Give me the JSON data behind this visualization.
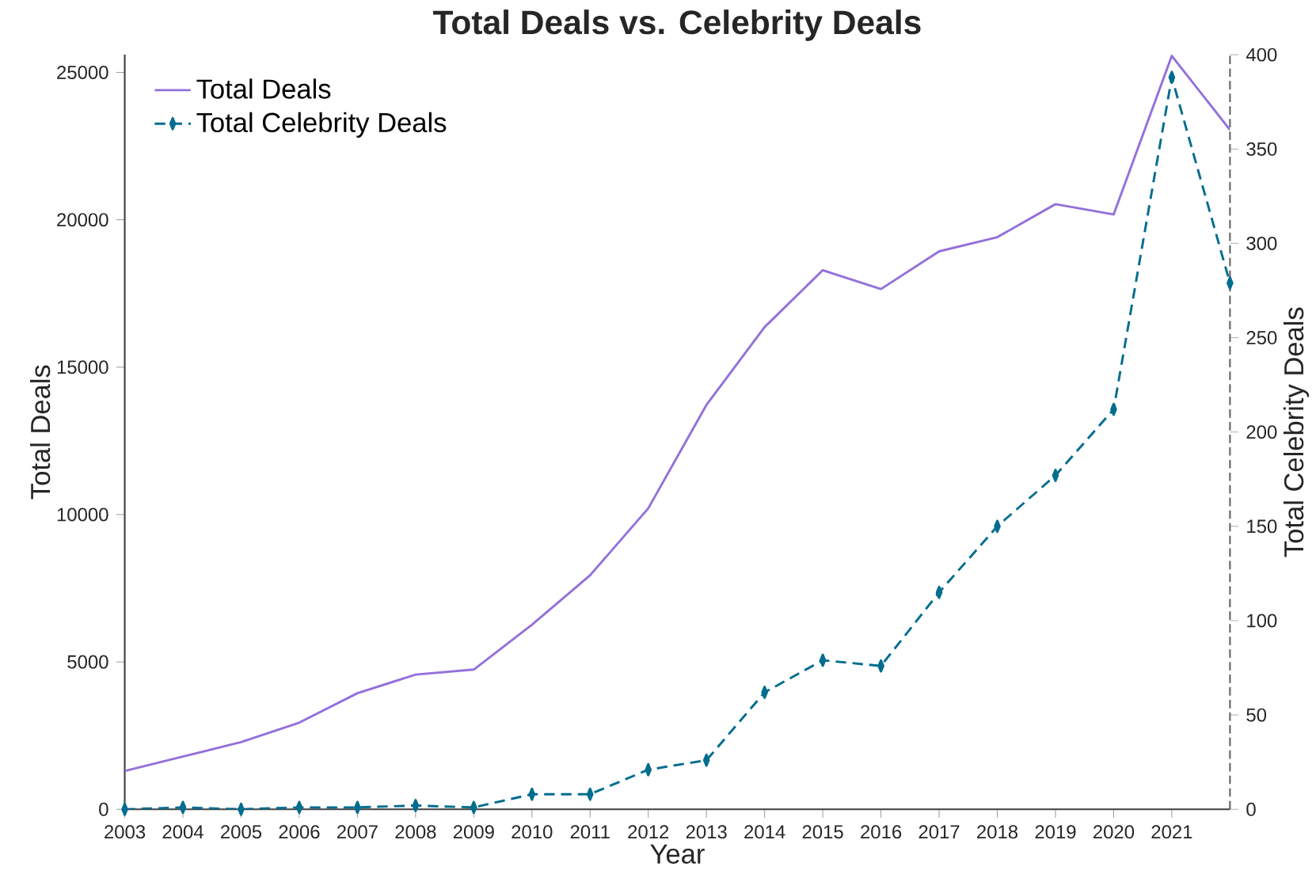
{
  "chart_data": {
    "type": "line",
    "title": "Total Deals vs. Celebrity Deals",
    "xlabel": "Year",
    "ylabel": "Total Deals",
    "y2label": "Total Celebrity Deals",
    "x": [
      2003,
      2004,
      2005,
      2006,
      2007,
      2008,
      2009,
      2010,
      2011,
      2012,
      2013,
      2014,
      2015,
      2016,
      2017,
      2018,
      2019,
      2020,
      2021,
      2022
    ],
    "series": [
      {
        "name": "Total Deals",
        "color": "#9370db",
        "line_style": "solid",
        "marker": "none",
        "values": [
          1300,
          1790,
          2280,
          2940,
          3940,
          4570,
          4740,
          6260,
          7940,
          10210,
          13720,
          16360,
          18290,
          17650,
          18930,
          19410,
          20530,
          20180,
          25560,
          23050
        ]
      },
      {
        "name": "Total Celebrity Deals",
        "color": "#006d8f",
        "line_style": "dashed",
        "marker": "diamond",
        "axis": "y2",
        "values": [
          0,
          1,
          0,
          1,
          1,
          2,
          1,
          8,
          8,
          21,
          26,
          62,
          79,
          76,
          115,
          150,
          177,
          212,
          388,
          279
        ]
      }
    ],
    "xlim": [
      2003,
      2022
    ],
    "xticks": [
      2003,
      2004,
      2005,
      2006,
      2007,
      2008,
      2009,
      2010,
      2011,
      2012,
      2013,
      2014,
      2015,
      2016,
      2017,
      2018,
      2019,
      2020,
      2021
    ],
    "ylim": [
      0,
      25600
    ],
    "yticks": [
      0,
      5000,
      10000,
      15000,
      20000,
      25000
    ],
    "y2lim": [
      0,
      400
    ],
    "y2ticks": [
      0,
      50,
      100,
      150,
      200,
      250,
      300,
      350,
      400
    ],
    "grid": false,
    "legend": "top left"
  }
}
